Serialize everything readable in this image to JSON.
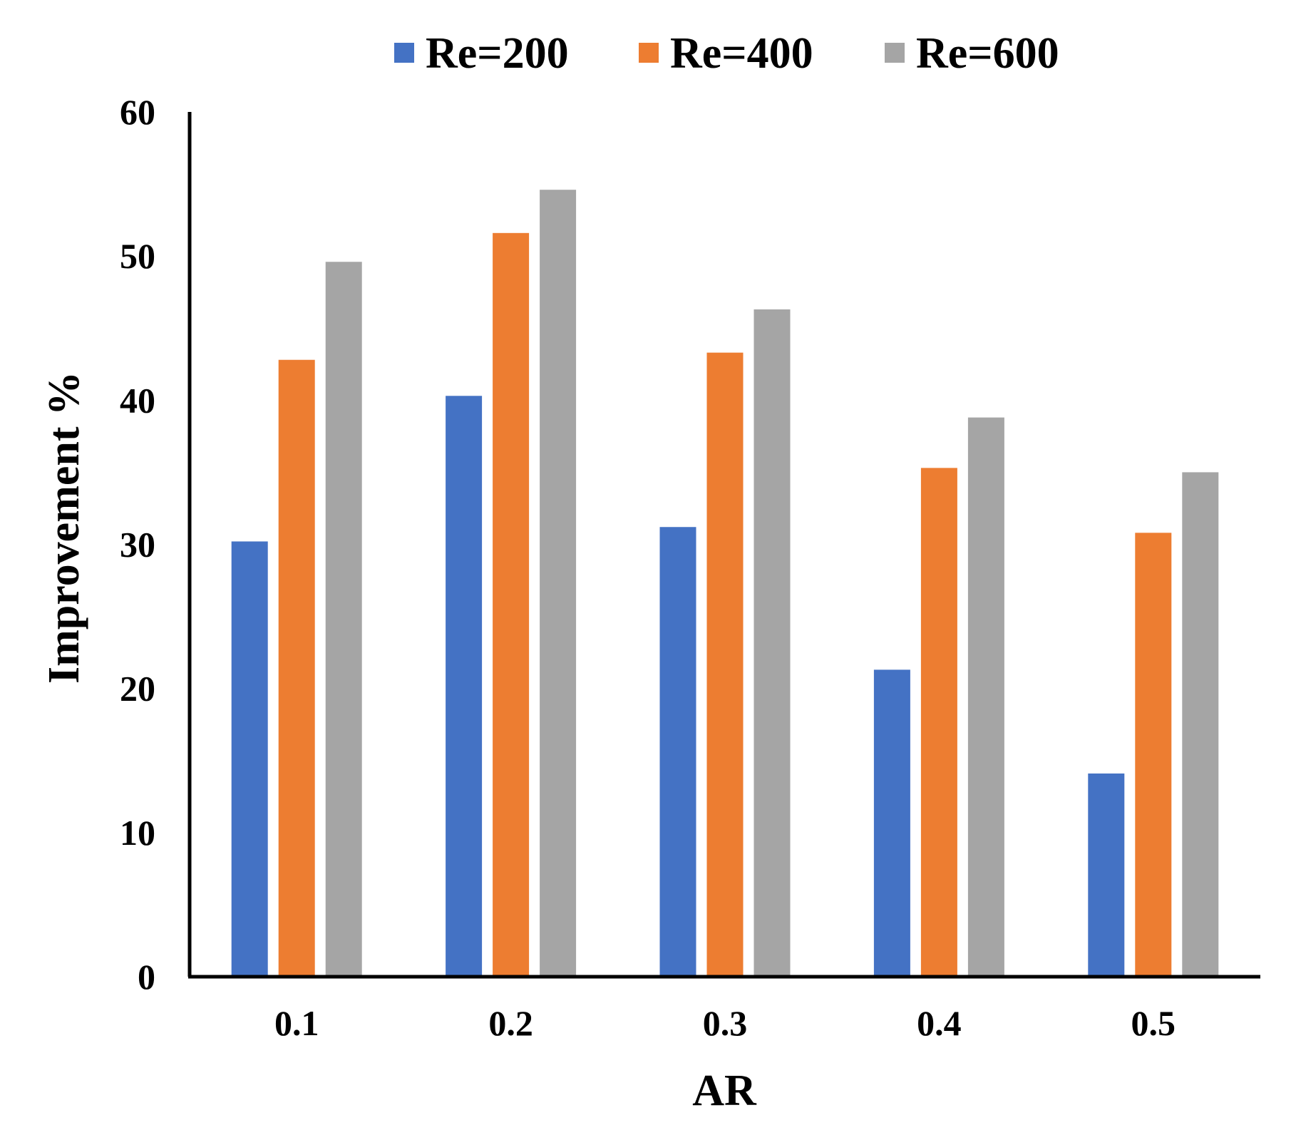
{
  "chart_data": {
    "type": "bar",
    "title": "",
    "xlabel": "AR",
    "ylabel": "Improvement %",
    "categories": [
      "0.1",
      "0.2",
      "0.3",
      "0.4",
      "0.5"
    ],
    "series": [
      {
        "name": "Re=200",
        "color": "#4472C4",
        "values": [
          30.2,
          40.3,
          31.2,
          21.3,
          14.1
        ]
      },
      {
        "name": "Re=400",
        "color": "#ED7D31",
        "values": [
          42.8,
          51.6,
          43.3,
          35.3,
          30.8
        ]
      },
      {
        "name": "Re=600",
        "color": "#A5A5A5",
        "values": [
          49.6,
          54.6,
          46.3,
          38.8,
          35.0
        ]
      }
    ],
    "ylim": [
      0,
      60
    ],
    "yticks": [
      "0",
      "10",
      "20",
      "30",
      "40",
      "50",
      "60"
    ],
    "grid": false,
    "legend_position": "top-center"
  }
}
